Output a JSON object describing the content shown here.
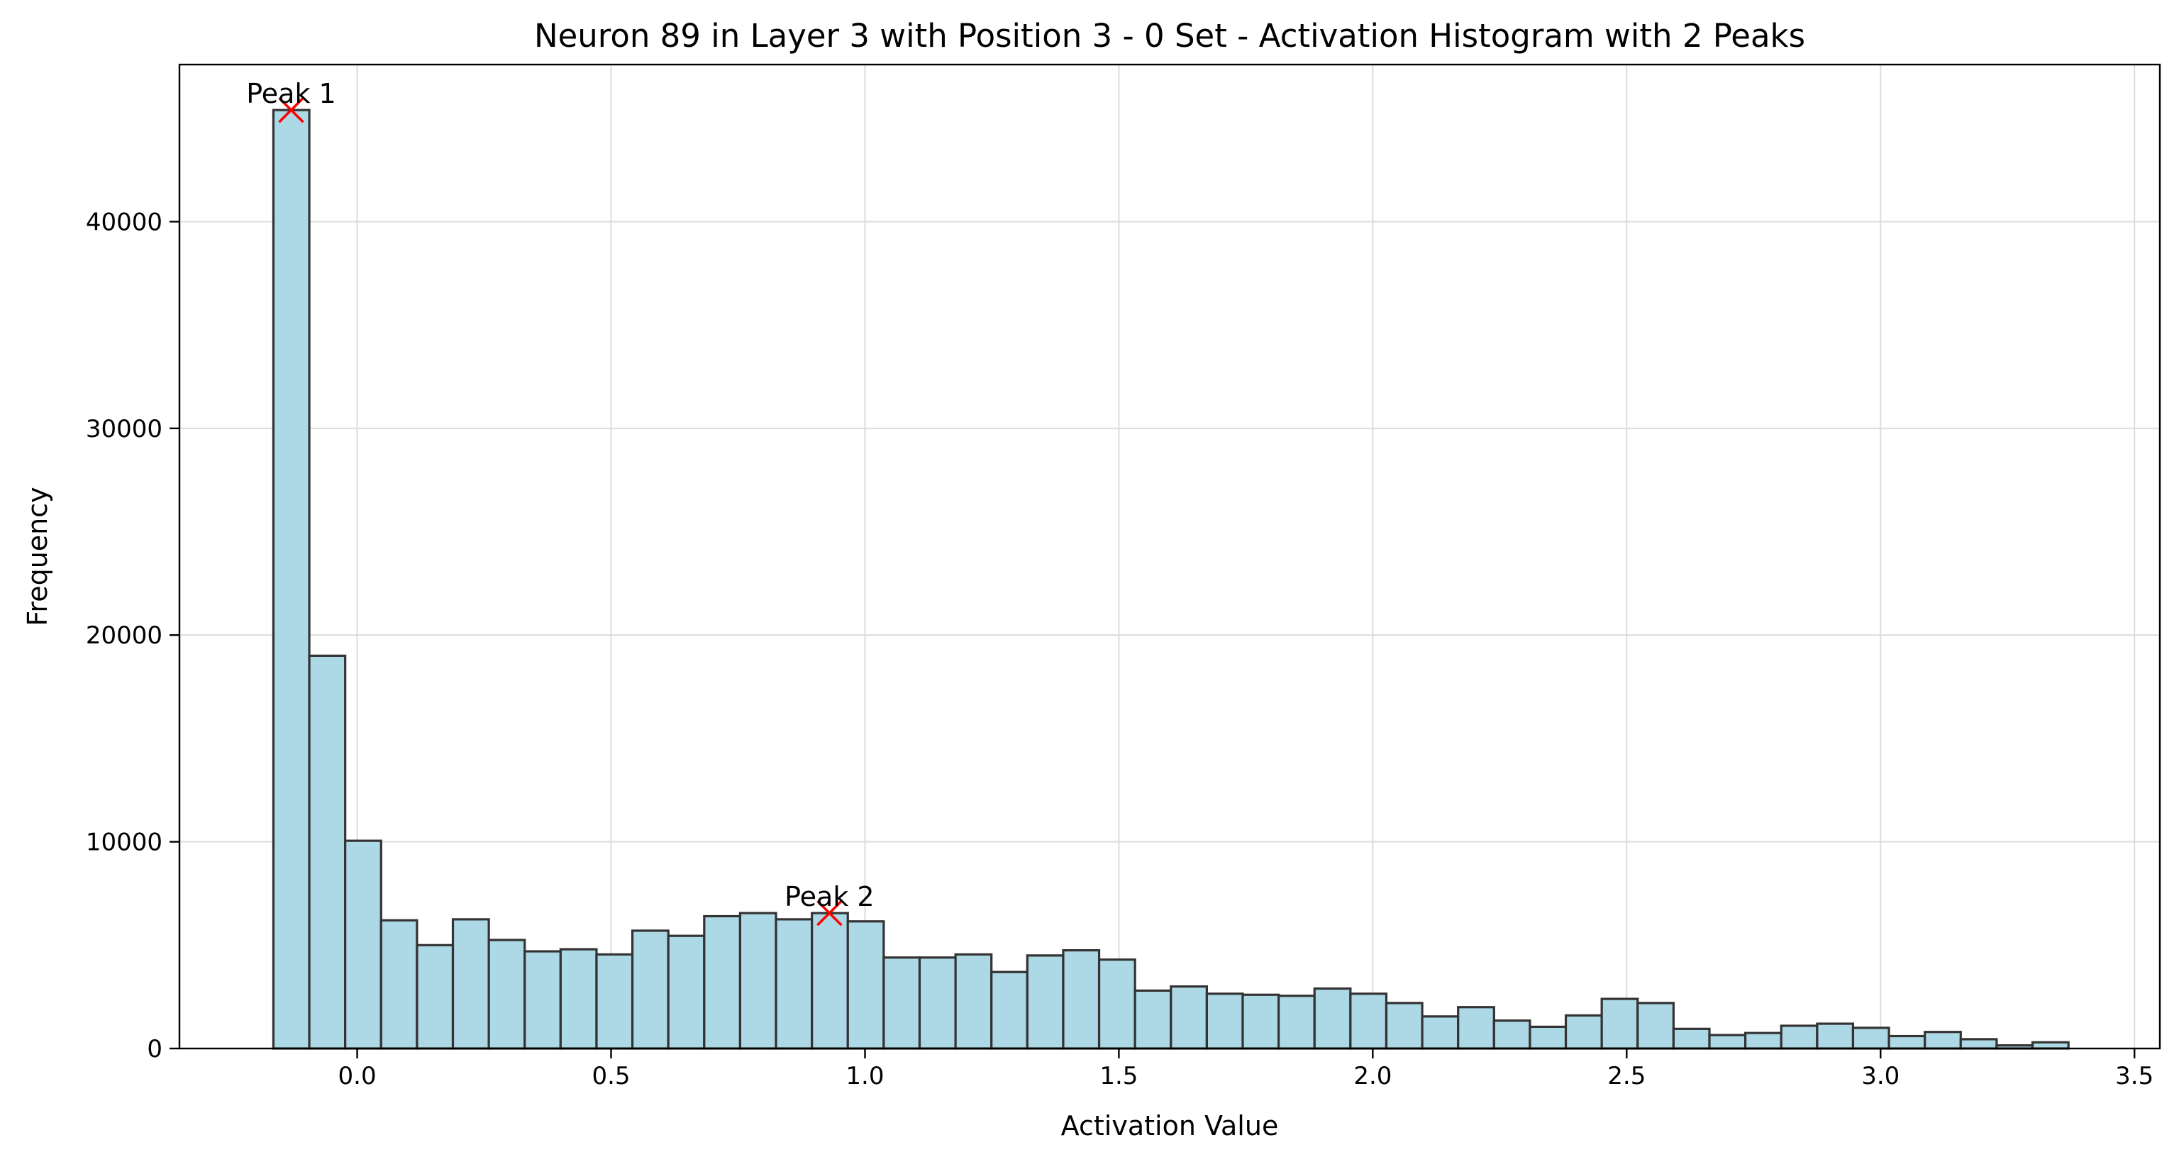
{
  "chart_data": {
    "type": "bar",
    "title": "Neuron 89 in Layer 3 with Position 3 - 0 Set - Activation Histogram with 2 Peaks",
    "xlabel": "Activation Value",
    "ylabel": "Frequency",
    "xlim": [
      -0.35,
      3.55
    ],
    "ylim": [
      0,
      47600
    ],
    "grid": true,
    "bar_color": "#add8e6",
    "bar_edge_color": "#333333",
    "bins": {
      "start": -0.165,
      "width": 0.0707,
      "values": [
        45400,
        19000,
        10050,
        6200,
        5000,
        6250,
        5250,
        4700,
        4800,
        4550,
        5700,
        5450,
        6400,
        6550,
        6250,
        6550,
        6150,
        4400,
        4400,
        4550,
        3700,
        4500,
        4750,
        4300,
        2800,
        3000,
        2650,
        2600,
        2550,
        2900,
        2650,
        2200,
        1550,
        2000,
        1350,
        1050,
        1600,
        2400,
        2200,
        950,
        650,
        750,
        1100,
        1200,
        1000,
        600,
        800,
        450,
        150,
        300
      ]
    },
    "x_ticks": [
      {
        "value": 0.0,
        "label": "0.0"
      },
      {
        "value": 0.5,
        "label": "0.5"
      },
      {
        "value": 1.0,
        "label": "1.0"
      },
      {
        "value": 1.5,
        "label": "1.5"
      },
      {
        "value": 2.0,
        "label": "2.0"
      },
      {
        "value": 2.5,
        "label": "2.5"
      },
      {
        "value": 3.0,
        "label": "3.0"
      },
      {
        "value": 3.5,
        "label": "3.5"
      }
    ],
    "y_ticks": [
      {
        "value": 0,
        "label": "0"
      },
      {
        "value": 10000,
        "label": "10000"
      },
      {
        "value": 20000,
        "label": "20000"
      },
      {
        "value": 30000,
        "label": "30000"
      },
      {
        "value": 40000,
        "label": "40000"
      }
    ],
    "peaks": [
      {
        "label": "Peak 1",
        "x": -0.13,
        "y": 45400
      },
      {
        "label": "Peak 2",
        "x": 0.93,
        "y": 6550
      }
    ],
    "peak_marker_color": "#ff0000"
  }
}
